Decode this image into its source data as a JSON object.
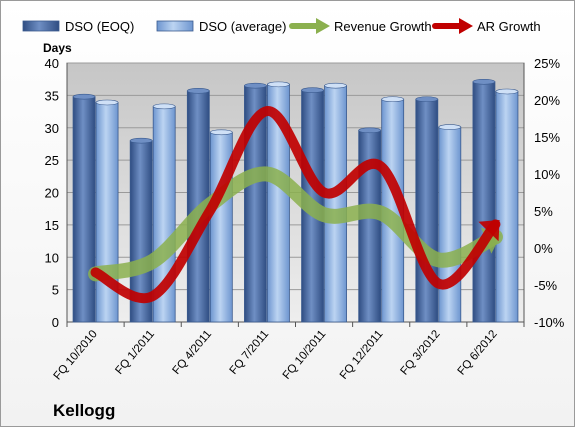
{
  "chart_data": {
    "type": "bar",
    "company": "Kellogg",
    "y_left_label": "Days",
    "y_left_range": [
      0,
      40
    ],
    "y_left_ticks": [
      "0",
      "5",
      "10",
      "15",
      "20",
      "25",
      "30",
      "35",
      "40"
    ],
    "y_right_range": [
      -10,
      25
    ],
    "y_right_ticks": [
      "-10%",
      "-5%",
      "0%",
      "5%",
      "10%",
      "15%",
      "20%",
      "25%"
    ],
    "categories": [
      "FQ 10/2010",
      "FQ 1/2011",
      "FQ 4/2011",
      "FQ 7/2011",
      "FQ 10/2011",
      "FQ 12/2011",
      "FQ 3/2012",
      "FQ 6/2012"
    ],
    "series": [
      {
        "name": "DSO (EOQ)",
        "kind": "bar",
        "axis": "left",
        "color": "#4a6aa0",
        "values": [
          34.8,
          28.0,
          35.7,
          36.5,
          35.8,
          29.6,
          34.4,
          37.1
        ]
      },
      {
        "name": "DSO (average)",
        "kind": "bar",
        "axis": "left",
        "color": "#8fb0e0",
        "values": [
          33.9,
          33.3,
          29.3,
          36.7,
          36.5,
          34.4,
          30.1,
          35.6
        ]
      },
      {
        "name": "Revenue Growth",
        "kind": "line",
        "axis": "right",
        "color": "#8bb04e",
        "values": [
          -3.5,
          -1.8,
          5.8,
          10.0,
          4.5,
          4.7,
          -1.6,
          1.5
        ]
      },
      {
        "name": "AR Growth",
        "kind": "line",
        "axis": "right",
        "color": "#c00000",
        "values": [
          -3.3,
          -6.5,
          5.0,
          18.5,
          7.5,
          11.0,
          -4.8,
          3.2
        ]
      }
    ],
    "legend_position": "top",
    "grid": true
  }
}
